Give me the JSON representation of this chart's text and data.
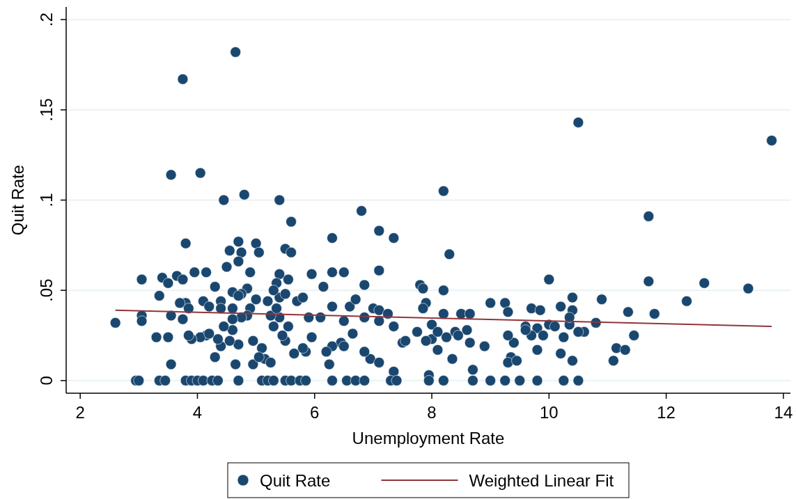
{
  "chart_data": {
    "type": "scatter",
    "xlabel": "Unemployment Rate",
    "ylabel": "Quit Rate",
    "xlim": [
      1.76,
      14.12
    ],
    "ylim": [
      -0.007,
      0.207
    ],
    "xticks": [
      2,
      4,
      6,
      8,
      10,
      12,
      14
    ],
    "yticks": [
      {
        "value": 0,
        "label": "0"
      },
      {
        "value": 0.05,
        "label": ".05"
      },
      {
        "value": 0.1,
        "label": ".1"
      },
      {
        "value": 0.15,
        "label": ".15"
      },
      {
        "value": 0.2,
        "label": ".2"
      }
    ],
    "grid": "y",
    "legend": "bottom",
    "series": [
      {
        "name": "Quit Rate",
        "marker": "circle",
        "color": "#1a476f",
        "x": [
          3.75,
          4.65,
          10.5,
          13.8,
          3.55,
          4.05,
          4.8,
          4.45,
          5.4,
          8.2,
          11.7,
          6.8,
          5.6,
          7.1,
          6.3,
          7.35,
          4.7,
          3.8,
          5.0,
          4.55,
          4.75,
          5.05,
          5.5,
          5.6,
          8.3,
          4.5,
          4.7,
          3.95,
          4.15,
          5.95,
          3.65,
          3.75,
          3.4,
          3.5,
          3.05,
          5.4,
          6.3,
          6.5,
          7.1,
          4.9,
          10.0,
          11.7,
          12.65,
          13.4,
          12.35,
          10.9,
          10.4,
          9.7,
          8.2,
          7.8,
          7.85,
          6.85,
          6.15,
          5.55,
          5.35,
          4.3,
          4.85,
          5.0,
          5.2,
          5.4,
          5.5,
          5.3,
          4.6,
          4.75,
          3.35,
          3.8,
          3.7,
          4.1,
          4.4,
          4.2,
          4.6,
          4.9,
          5.7,
          5.8,
          6.3,
          6.6,
          6.7,
          7.0,
          7.1,
          7.25,
          7.9,
          7.85,
          8.2,
          8.5,
          8.65,
          9.0,
          9.25,
          9.3,
          9.85,
          10.2,
          10.4,
          11.35,
          11.8,
          10.8,
          10.6,
          10.0,
          10.1,
          9.6,
          9.8,
          9.7,
          9.9,
          10.25,
          10.5,
          10.35,
          11.45,
          11.15,
          11.3,
          11.1,
          10.4,
          10.2,
          9.8,
          9.4,
          9.3,
          9.35,
          9.3,
          9.45,
          8.9,
          8.7,
          8.65,
          8.6,
          8.4,
          8.45,
          8.35,
          8.1,
          8.0,
          7.9,
          8.25,
          7.95,
          7.75,
          7.5,
          7.55,
          7.35,
          7.35,
          7.1,
          6.95,
          7.1,
          6.85,
          6.85,
          6.65,
          6.5,
          6.45,
          6.5,
          6.3,
          6.2,
          6.25,
          6.1,
          5.95,
          5.9,
          5.85,
          5.8,
          5.65,
          5.5,
          5.45,
          5.55,
          5.3,
          5.4,
          5.25,
          5.1,
          5.15,
          5.25,
          4.95,
          4.95,
          5.05,
          4.85,
          4.75,
          4.7,
          4.65,
          4.55,
          4.6,
          4.45,
          4.4,
          4.35,
          4.3,
          4.15,
          4.05,
          3.9,
          3.85,
          3.75,
          3.85,
          4.2,
          3.5,
          3.3,
          3.55,
          3.55,
          3.05,
          3.05,
          2.6,
          4.4,
          4.6,
          4.7,
          5.35,
          8.0,
          8.1,
          9.6,
          10.35,
          2.95,
          3.0,
          3.35,
          3.45,
          3.8,
          3.9,
          4.0,
          4.1,
          4.25,
          4.35,
          4.7,
          5.1,
          5.2,
          5.3,
          5.5,
          5.6,
          5.75,
          5.85,
          6.3,
          6.55,
          6.7,
          6.85,
          7.3,
          7.4,
          7.95,
          8.2,
          8.7,
          9.0,
          9.25,
          9.5,
          9.8,
          10.25,
          10.5
        ],
        "values": [
          0.167,
          0.182,
          0.143,
          0.133,
          0.114,
          0.115,
          0.103,
          0.1,
          0.1,
          0.105,
          0.091,
          0.094,
          0.088,
          0.083,
          0.079,
          0.079,
          0.077,
          0.076,
          0.076,
          0.072,
          0.071,
          0.071,
          0.073,
          0.071,
          0.07,
          0.063,
          0.066,
          0.06,
          0.06,
          0.059,
          0.058,
          0.056,
          0.057,
          0.054,
          0.056,
          0.059,
          0.06,
          0.06,
          0.061,
          0.06,
          0.056,
          0.055,
          0.054,
          0.051,
          0.044,
          0.045,
          0.046,
          0.04,
          0.05,
          0.053,
          0.051,
          0.053,
          0.052,
          0.056,
          0.054,
          0.052,
          0.051,
          0.045,
          0.044,
          0.046,
          0.048,
          0.05,
          0.049,
          0.048,
          0.047,
          0.043,
          0.043,
          0.044,
          0.044,
          0.041,
          0.04,
          0.04,
          0.044,
          0.046,
          0.041,
          0.041,
          0.045,
          0.04,
          0.039,
          0.037,
          0.043,
          0.04,
          0.037,
          0.037,
          0.037,
          0.043,
          0.043,
          0.038,
          0.039,
          0.041,
          0.039,
          0.038,
          0.037,
          0.032,
          0.027,
          0.031,
          0.03,
          0.03,
          0.029,
          0.025,
          0.025,
          0.024,
          0.027,
          0.031,
          0.025,
          0.018,
          0.017,
          0.011,
          0.011,
          0.015,
          0.017,
          0.021,
          0.025,
          0.013,
          0.01,
          0.011,
          0.019,
          0.006,
          0.021,
          0.028,
          0.027,
          0.025,
          0.012,
          0.017,
          0.023,
          0.022,
          0.024,
          0.003,
          0.027,
          0.021,
          0.022,
          0.03,
          0.005,
          0.033,
          0.012,
          0.01,
          0.035,
          0.016,
          0.026,
          0.033,
          0.021,
          0.019,
          0.019,
          0.016,
          0.009,
          0.035,
          0.024,
          0.035,
          0.016,
          0.018,
          0.015,
          0.022,
          0.025,
          0.03,
          0.03,
          0.035,
          0.036,
          0.018,
          0.012,
          0.01,
          0.022,
          0.009,
          0.013,
          0.036,
          0.035,
          0.02,
          0.009,
          0.022,
          0.028,
          0.03,
          0.019,
          0.023,
          0.013,
          0.025,
          0.024,
          0.023,
          0.025,
          0.034,
          0.04,
          0.026,
          0.024,
          0.024,
          0.009,
          0.036,
          0.036,
          0.033,
          0.032,
          0.04,
          0.034,
          0.047,
          0.04,
          0.031,
          0.027,
          0.028,
          0.035,
          0,
          0,
          0,
          0,
          0,
          0,
          0,
          0,
          0,
          0,
          0,
          0,
          0,
          0,
          0,
          0,
          0,
          0,
          0,
          0,
          0,
          0,
          0,
          0,
          0,
          0,
          0,
          0,
          0,
          0,
          0,
          0,
          0
        ]
      },
      {
        "name": "Weighted Linear Fit",
        "type": "line",
        "marker": "none",
        "color": "#90353b",
        "line_style": "solid",
        "x": [
          2.6,
          13.8
        ],
        "values": [
          0.039,
          0.03
        ]
      }
    ]
  }
}
